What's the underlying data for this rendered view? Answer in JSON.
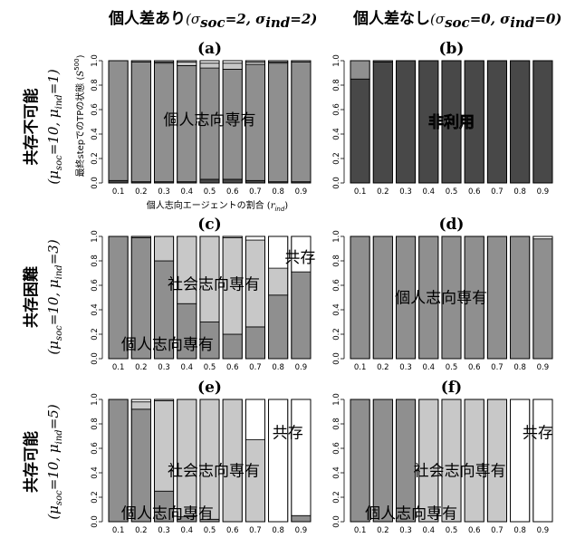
{
  "headers": {
    "col_left": "個人差あり(σsoc=2, σind=2)",
    "col_right": "個人差なし(σsoc=0, σind=0)"
  },
  "rows": [
    {
      "label": "共存不可能",
      "sub": "(μsoc=10, μind=1)"
    },
    {
      "label": "共存困難",
      "sub": "(μsoc=10, μind=3)"
    },
    {
      "label": "共存可能",
      "sub": "(μsoc=10, μind=5)"
    }
  ],
  "axis": {
    "ylabel": "最終stepでのTPの状態 (S500)",
    "xlabel": "個人志向エージェントの割合 (rind)"
  },
  "colors": {
    "non_use": "#484848",
    "individual": "#8f8f8f",
    "social": "#c8c8c8",
    "coexist": "#ffffff"
  },
  "chart_data": [
    {
      "panel": "(a)",
      "type": "bar",
      "stacked": true,
      "categories": [
        "0.1",
        "0.2",
        "0.3",
        "0.4",
        "0.5",
        "0.6",
        "0.7",
        "0.8",
        "0.9"
      ],
      "yticks": [
        "0.0",
        "0.2",
        "0.4",
        "0.6",
        "0.8",
        "1.0"
      ],
      "ylim": [
        0,
        1
      ],
      "series": [
        {
          "name": "非利用",
          "values": [
            0.02,
            0.01,
            0.01,
            0.01,
            0.03,
            0.03,
            0.02,
            0.01,
            0.01
          ]
        },
        {
          "name": "個人志向専有",
          "values": [
            0.98,
            0.98,
            0.97,
            0.95,
            0.91,
            0.9,
            0.95,
            0.97,
            0.98
          ]
        },
        {
          "name": "社会志向専有",
          "values": [
            0,
            0.01,
            0.01,
            0.03,
            0.04,
            0.05,
            0.02,
            0.01,
            0.01
          ]
        },
        {
          "name": "共存",
          "values": [
            0,
            0,
            0.01,
            0.01,
            0.02,
            0.02,
            0.01,
            0.01,
            0
          ]
        }
      ],
      "annotations": [
        "個人志向専有"
      ]
    },
    {
      "panel": "(b)",
      "type": "bar",
      "stacked": true,
      "categories": [
        "0.1",
        "0.2",
        "0.3",
        "0.4",
        "0.5",
        "0.6",
        "0.7",
        "0.8",
        "0.9"
      ],
      "yticks": [
        "0.0",
        "0.2",
        "0.4",
        "0.6",
        "0.8",
        "1.0"
      ],
      "ylim": [
        0,
        1
      ],
      "series": [
        {
          "name": "非利用",
          "values": [
            0.85,
            0.99,
            1,
            1,
            1,
            1,
            1,
            1,
            1
          ]
        },
        {
          "name": "個人志向専有",
          "values": [
            0.15,
            0.01,
            0,
            0,
            0,
            0,
            0,
            0,
            0
          ]
        },
        {
          "name": "社会志向専有",
          "values": [
            0,
            0,
            0,
            0,
            0,
            0,
            0,
            0,
            0
          ]
        },
        {
          "name": "共存",
          "values": [
            0,
            0,
            0,
            0,
            0,
            0,
            0,
            0,
            0
          ]
        }
      ],
      "annotations": [
        "非利用"
      ]
    },
    {
      "panel": "(c)",
      "type": "bar",
      "stacked": true,
      "categories": [
        "0.1",
        "0.2",
        "0.3",
        "0.4",
        "0.5",
        "0.6",
        "0.7",
        "0.8",
        "0.9"
      ],
      "yticks": [
        "0.0",
        "0.2",
        "0.4",
        "0.6",
        "0.8",
        "1.0"
      ],
      "ylim": [
        0,
        1
      ],
      "series": [
        {
          "name": "非利用",
          "values": [
            0,
            0,
            0,
            0,
            0,
            0,
            0,
            0,
            0
          ]
        },
        {
          "name": "個人志向専有",
          "values": [
            1.0,
            0.99,
            0.8,
            0.45,
            0.3,
            0.2,
            0.26,
            0.52,
            0.71
          ]
        },
        {
          "name": "社会志向専有",
          "values": [
            0,
            0.01,
            0.2,
            0.55,
            0.7,
            0.79,
            0.71,
            0.22,
            0
          ]
        },
        {
          "name": "共存",
          "values": [
            0,
            0,
            0,
            0,
            0,
            0.01,
            0.03,
            0.26,
            0.29
          ]
        }
      ],
      "annotations": [
        "共存",
        "社会志向専有",
        "個人志向専有"
      ]
    },
    {
      "panel": "(d)",
      "type": "bar",
      "stacked": true,
      "categories": [
        "0.1",
        "0.2",
        "0.3",
        "0.4",
        "0.5",
        "0.6",
        "0.7",
        "0.8",
        "0.9"
      ],
      "yticks": [
        "0.0",
        "0.2",
        "0.4",
        "0.6",
        "0.8",
        "1.0"
      ],
      "ylim": [
        0,
        1
      ],
      "series": [
        {
          "name": "非利用",
          "values": [
            0,
            0,
            0,
            0,
            0,
            0,
            0,
            0,
            0
          ]
        },
        {
          "name": "個人志向専有",
          "values": [
            1,
            1,
            1,
            1,
            1,
            1,
            1,
            1,
            0.98
          ]
        },
        {
          "name": "社会志向専有",
          "values": [
            0,
            0,
            0,
            0,
            0,
            0,
            0,
            0,
            0
          ]
        },
        {
          "name": "共存",
          "values": [
            0,
            0,
            0,
            0,
            0,
            0,
            0,
            0,
            0.02
          ]
        }
      ],
      "annotations": [
        "個人志向専有"
      ]
    },
    {
      "panel": "(e)",
      "type": "bar",
      "stacked": true,
      "categories": [
        "0.1",
        "0.2",
        "0.3",
        "0.4",
        "0.5",
        "0.6",
        "0.7",
        "0.8",
        "0.9"
      ],
      "yticks": [
        "0.0",
        "0.2",
        "0.4",
        "0.6",
        "0.8",
        "1.0"
      ],
      "ylim": [
        0,
        1
      ],
      "series": [
        {
          "name": "非利用",
          "values": [
            0,
            0,
            0,
            0,
            0,
            0,
            0,
            0,
            0
          ]
        },
        {
          "name": "個人志向専有",
          "values": [
            1.0,
            0.92,
            0.25,
            0.04,
            0.02,
            0,
            0,
            0,
            0.05
          ]
        },
        {
          "name": "社会志向専有",
          "values": [
            0,
            0.06,
            0.74,
            0.96,
            0.98,
            1.0,
            0.67,
            0,
            0
          ]
        },
        {
          "name": "共存",
          "values": [
            0,
            0.02,
            0.01,
            0,
            0,
            0,
            0.33,
            1.0,
            0.95
          ]
        }
      ],
      "annotations": [
        "共存",
        "社会志向専有",
        "個人志向専有"
      ]
    },
    {
      "panel": "(f)",
      "type": "bar",
      "stacked": true,
      "categories": [
        "0.1",
        "0.2",
        "0.3",
        "0.4",
        "0.5",
        "0.6",
        "0.7",
        "0.8",
        "0.9"
      ],
      "yticks": [
        "0.0",
        "0.2",
        "0.4",
        "0.6",
        "0.8",
        "1.0"
      ],
      "ylim": [
        0,
        1
      ],
      "series": [
        {
          "name": "非利用",
          "values": [
            0,
            0,
            0,
            0,
            0,
            0,
            0,
            0,
            0
          ]
        },
        {
          "name": "個人志向専有",
          "values": [
            1,
            1,
            1,
            0,
            0,
            0,
            0,
            0,
            0
          ]
        },
        {
          "name": "社会志向専有",
          "values": [
            0,
            0,
            0,
            1,
            1,
            1,
            1,
            0,
            0
          ]
        },
        {
          "name": "共存",
          "values": [
            0,
            0,
            0,
            0,
            0,
            0,
            0,
            1,
            1
          ]
        }
      ],
      "annotations": [
        "共存",
        "社会志向専有",
        "個人志向専有"
      ]
    }
  ]
}
